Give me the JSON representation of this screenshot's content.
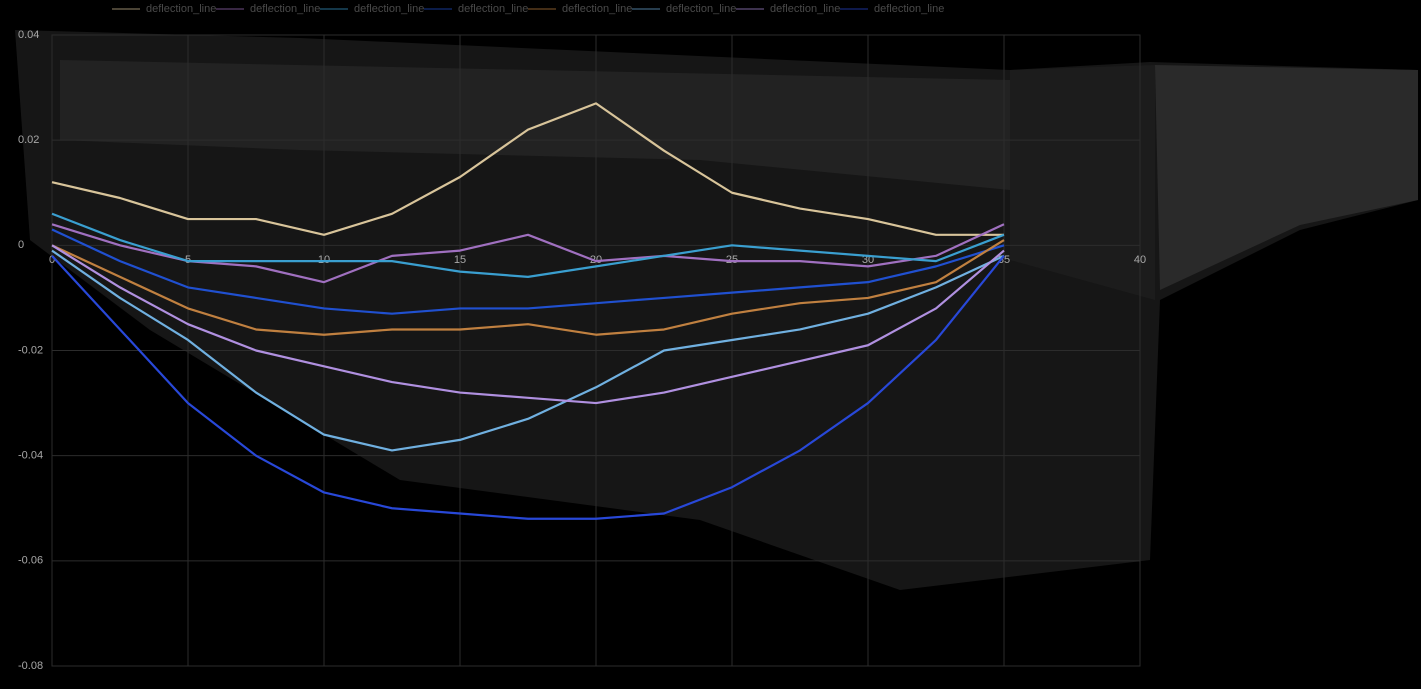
{
  "chart_data": {
    "type": "line",
    "x": [
      0,
      2.5,
      5,
      7.5,
      10,
      12.5,
      15,
      17.5,
      20,
      22.5,
      25,
      27.5,
      30,
      32.5,
      35
    ],
    "series": [
      {
        "name": "deflection_line",
        "color": "#d8c49a",
        "values": [
          0.012,
          0.009,
          0.005,
          0.005,
          0.002,
          0.006,
          0.013,
          0.022,
          0.027,
          0.018,
          0.01,
          0.007,
          0.005,
          0.002,
          0.002
        ]
      },
      {
        "name": "deflection_line",
        "color": "#a070c0",
        "values": [
          0.004,
          0.0,
          -0.003,
          -0.004,
          -0.007,
          -0.002,
          -0.001,
          0.002,
          -0.003,
          -0.002,
          -0.003,
          -0.003,
          -0.004,
          -0.002,
          0.004
        ]
      },
      {
        "name": "deflection_line",
        "color": "#3a9fd0",
        "values": [
          0.006,
          0.001,
          -0.003,
          -0.003,
          -0.003,
          -0.003,
          -0.005,
          -0.006,
          -0.004,
          -0.002,
          0.0,
          -0.001,
          -0.002,
          -0.003,
          0.002
        ]
      },
      {
        "name": "deflection_line",
        "color": "#2050d0",
        "values": [
          0.003,
          -0.003,
          -0.008,
          -0.01,
          -0.012,
          -0.013,
          -0.012,
          -0.012,
          -0.011,
          -0.01,
          -0.009,
          -0.008,
          -0.007,
          -0.004,
          0.0
        ]
      },
      {
        "name": "deflection_line",
        "color": "#c08040",
        "values": [
          0.0,
          -0.006,
          -0.012,
          -0.016,
          -0.017,
          -0.016,
          -0.016,
          -0.015,
          -0.017,
          -0.016,
          -0.013,
          -0.011,
          -0.01,
          -0.007,
          0.001
        ]
      },
      {
        "name": "deflection_line",
        "color": "#70b0e0",
        "values": [
          -0.001,
          -0.01,
          -0.018,
          -0.028,
          -0.036,
          -0.039,
          -0.037,
          -0.033,
          -0.027,
          -0.02,
          -0.018,
          -0.016,
          -0.013,
          -0.008,
          -0.002
        ]
      },
      {
        "name": "deflection_line",
        "color": "#b090e0",
        "values": [
          0.0,
          -0.008,
          -0.015,
          -0.02,
          -0.023,
          -0.026,
          -0.028,
          -0.029,
          -0.03,
          -0.028,
          -0.025,
          -0.022,
          -0.019,
          -0.012,
          -0.001
        ]
      },
      {
        "name": "deflection_line",
        "color": "#2848d8",
        "values": [
          -0.002,
          -0.016,
          -0.03,
          -0.04,
          -0.047,
          -0.05,
          -0.051,
          -0.052,
          -0.052,
          -0.051,
          -0.046,
          -0.039,
          -0.03,
          -0.018,
          -0.002
        ]
      }
    ],
    "xlim": [
      0,
      40
    ],
    "xticks": [
      0,
      5,
      10,
      15,
      20,
      25,
      30,
      35,
      40
    ],
    "ylim": [
      -0.08,
      0.04
    ],
    "yticks": [
      0.04,
      0.02,
      0,
      -0.02,
      -0.04,
      -0.06,
      -0.08
    ],
    "grid": true
  }
}
